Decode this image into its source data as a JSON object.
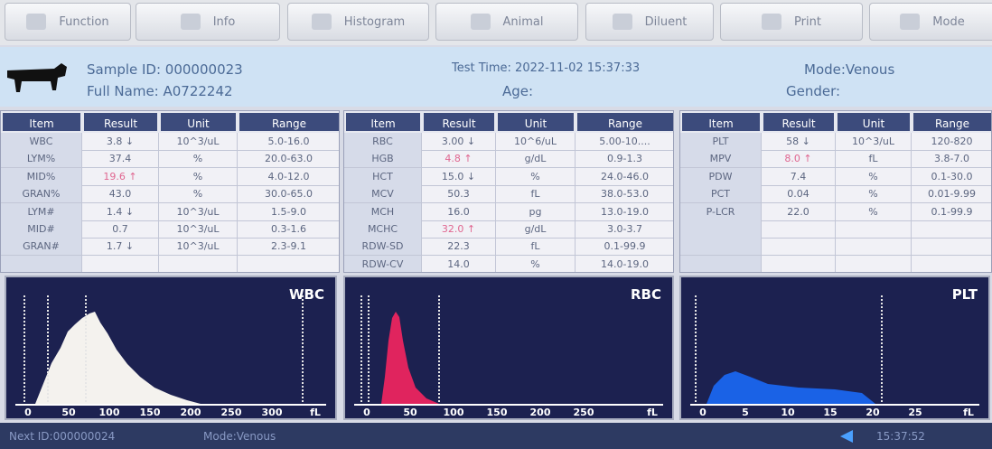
{
  "toolbar": {
    "buttons": [
      "Function",
      "Info",
      "Histogram",
      "Animal",
      "Diluent",
      "Print",
      "Mode"
    ]
  },
  "header": {
    "sample_id": "Sample ID: 000000023",
    "full_name": "Full Name: A0722242",
    "test_time": "Test Time: 2022-11-02 15:37:33",
    "age": "Age:",
    "mode": "Mode:Venous",
    "gender": "Gender:"
  },
  "tables": [
    {
      "columns": [
        "Item",
        "Result",
        "Unit",
        "Range"
      ],
      "rows": [
        [
          "WBC",
          "3.8 ↓",
          "10^3/uL",
          "5.0-16.0"
        ],
        [
          "LYM%",
          "37.4",
          "%",
          "20.0-63.0"
        ],
        [
          "MID%",
          "19.6 ↑",
          "%",
          "4.0-12.0"
        ],
        [
          "GRAN%",
          "43.0",
          "%",
          "30.0-65.0"
        ],
        [
          "LYM#",
          "1.4 ↓",
          "10^3/uL",
          "1.5-9.0"
        ],
        [
          "MID#",
          "0.7",
          "10^3/uL",
          "0.3-1.6"
        ],
        [
          "GRAN#",
          "1.7 ↓",
          "10^3/uL",
          "2.3-9.1"
        ]
      ]
    },
    {
      "columns": [
        "Item",
        "Result",
        "Unit",
        "Range"
      ],
      "rows": [
        [
          "RBC",
          "3.00 ↓",
          "10^6/uL",
          "5.00-10...."
        ],
        [
          "HGB",
          "4.8 ↑",
          "g/dL",
          "0.9-1.3"
        ],
        [
          "HCT",
          "15.0 ↓",
          "%",
          "24.0-46.0"
        ],
        [
          "MCV",
          "50.3",
          "fL",
          "38.0-53.0"
        ],
        [
          "MCH",
          "16.0",
          "pg",
          "13.0-19.0"
        ],
        [
          "MCHC",
          "32.0 ↑",
          "g/dL",
          "3.0-3.7"
        ],
        [
          "RDW-SD",
          "22.3",
          "fL",
          "0.1-99.9"
        ],
        [
          "RDW-CV",
          "14.0",
          "%",
          "14.0-19.0"
        ]
      ]
    },
    {
      "columns": [
        "Item",
        "Result",
        "Unit",
        "Range"
      ],
      "rows": [
        [
          "PLT",
          "58 ↓",
          "10^3/uL",
          "120-820"
        ],
        [
          "MPV",
          "8.0 ↑",
          "fL",
          "3.8-7.0"
        ],
        [
          "PDW",
          "7.4",
          "%",
          "0.1-30.0"
        ],
        [
          "PCT",
          "0.04",
          "%",
          "0.01-9.99"
        ],
        [
          "P-LCR",
          "22.0",
          "%",
          "0.1-99.9"
        ]
      ]
    }
  ],
  "histograms": [
    {
      "title": "WBC",
      "ticks": [
        "0",
        "50",
        "100",
        "150",
        "200",
        "250",
        "300"
      ],
      "unit": "fL"
    },
    {
      "title": "RBC",
      "ticks": [
        "0",
        "50",
        "100",
        "150",
        "200",
        "250"
      ],
      "unit": "fL"
    },
    {
      "title": "PLT",
      "ticks": [
        "0",
        "5",
        "10",
        "15",
        "20",
        "25"
      ],
      "unit": "fL"
    }
  ],
  "status_bar": {
    "next_id": "Next ID:000000024",
    "mode": "Mode:Venous",
    "time": "15:37:52"
  }
}
